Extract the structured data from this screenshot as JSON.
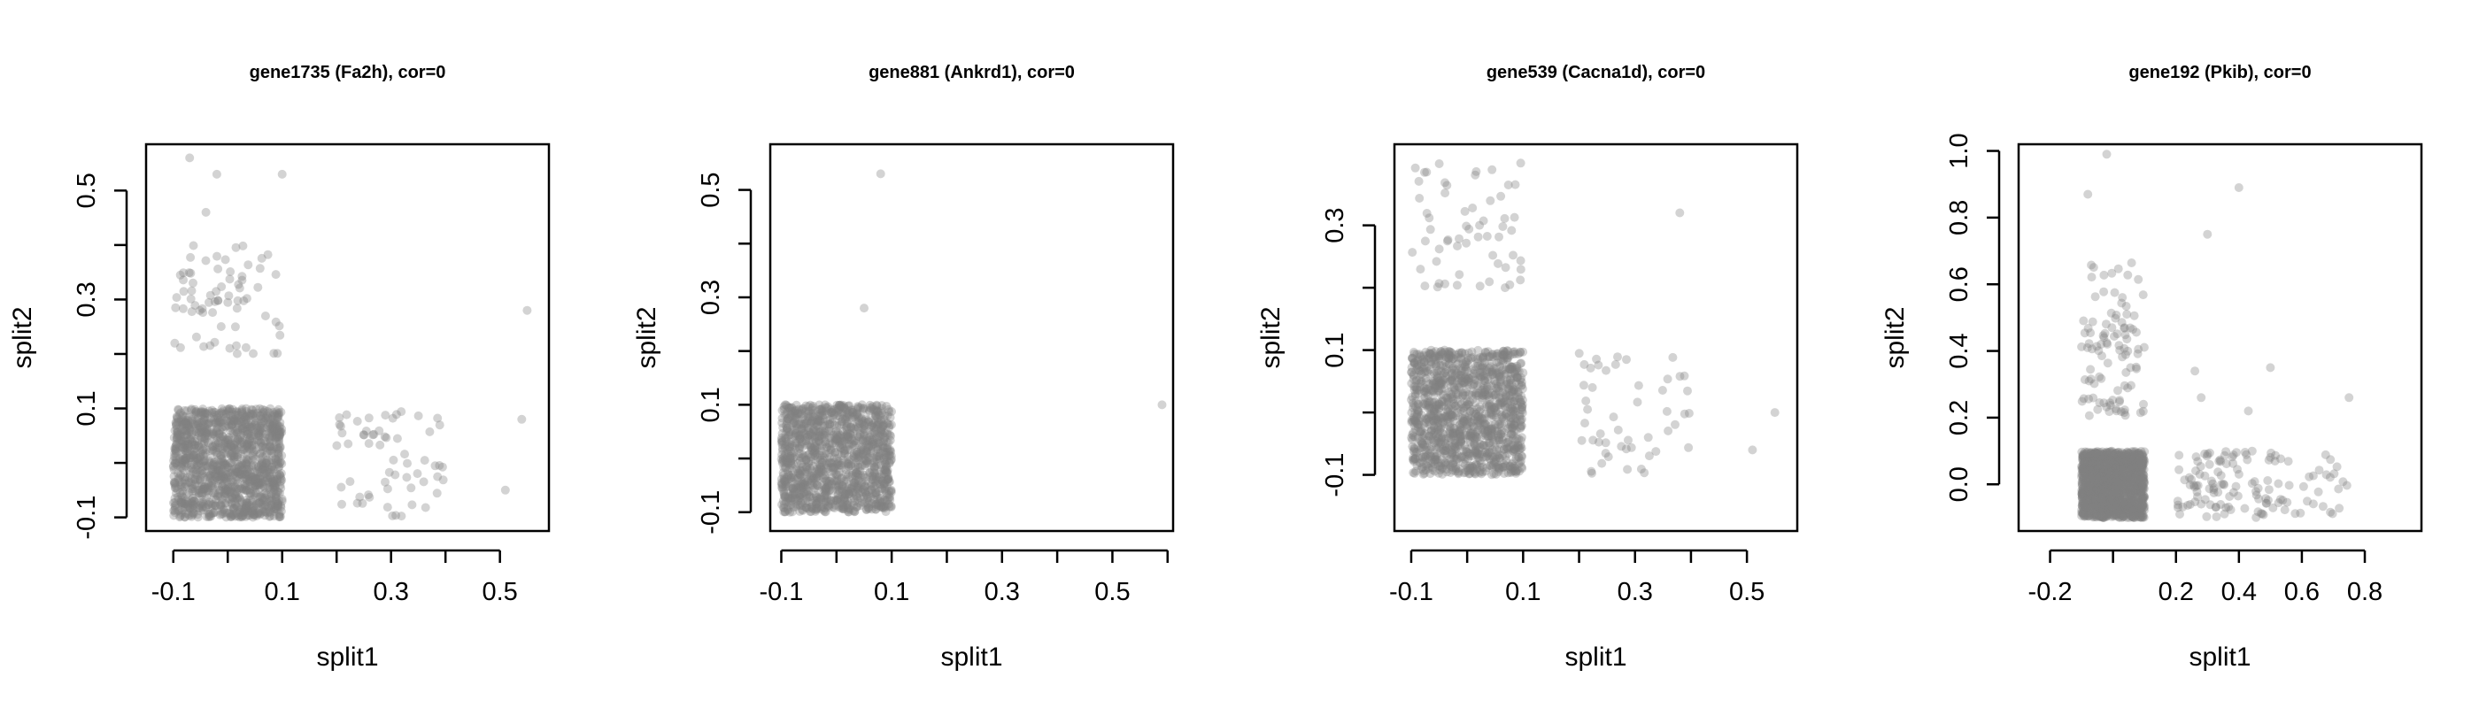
{
  "figure": {
    "background": "#ffffff",
    "point_color": "#808080"
  },
  "chart_data": [
    {
      "type": "scatter",
      "title": "gene1735 (Fa2h), cor=0",
      "xlabel": "split1",
      "ylabel": "split2",
      "xlim": [
        -0.15,
        0.59
      ],
      "ylim": [
        -0.125,
        0.585
      ],
      "xticks": [
        -0.1,
        0.0,
        0.1,
        0.2,
        0.3,
        0.4,
        0.5
      ],
      "xtick_labels": [
        "-0.1",
        "",
        "0.1",
        "",
        "0.3",
        "",
        "0.5"
      ],
      "yticks": [
        -0.1,
        0.0,
        0.1,
        0.2,
        0.3,
        0.4,
        0.5
      ],
      "ytick_labels": [
        "-0.1",
        "",
        "0.1",
        "",
        "0.3",
        "",
        "0.5"
      ],
      "grid": false,
      "clusters": [
        {
          "x": [
            -0.1,
            0.1
          ],
          "y": [
            -0.1,
            0.1
          ],
          "n": 1400,
          "opacity": 0.35
        },
        {
          "x": [
            -0.1,
            0.1
          ],
          "y": [
            0.2,
            0.4
          ],
          "n": 70,
          "opacity": 0.35
        },
        {
          "x": [
            0.2,
            0.4
          ],
          "y": [
            -0.1,
            0.1
          ],
          "n": 60,
          "opacity": 0.35
        }
      ],
      "points": [
        {
          "x": -0.07,
          "y": 0.56
        },
        {
          "x": -0.02,
          "y": 0.53
        },
        {
          "x": 0.1,
          "y": 0.53
        },
        {
          "x": -0.04,
          "y": 0.46
        },
        {
          "x": 0.55,
          "y": 0.28
        },
        {
          "x": 0.54,
          "y": 0.08
        },
        {
          "x": 0.51,
          "y": -0.05
        }
      ]
    },
    {
      "type": "scatter",
      "title": "gene881 (Ankrd1), cor=0",
      "xlabel": "split1",
      "ylabel": "split2",
      "xlim": [
        -0.12,
        0.61
      ],
      "ylim": [
        -0.135,
        0.585
      ],
      "xticks": [
        -0.1,
        0.0,
        0.1,
        0.2,
        0.3,
        0.4,
        0.5,
        0.6
      ],
      "xtick_labels": [
        "-0.1",
        "",
        "0.1",
        "",
        "0.3",
        "",
        "0.5",
        ""
      ],
      "yticks": [
        -0.1,
        0.0,
        0.1,
        0.2,
        0.3,
        0.4,
        0.5
      ],
      "ytick_labels": [
        "-0.1",
        "",
        "0.1",
        "",
        "0.3",
        "",
        "0.5"
      ],
      "grid": false,
      "clusters": [
        {
          "x": [
            -0.1,
            0.1
          ],
          "y": [
            -0.1,
            0.1
          ],
          "n": 1300,
          "opacity": 0.35
        }
      ],
      "points": [
        {
          "x": 0.08,
          "y": 0.53
        },
        {
          "x": 0.05,
          "y": 0.28
        },
        {
          "x": 0.59,
          "y": 0.1
        }
      ]
    },
    {
      "type": "scatter",
      "title": "gene539 (Cacna1d), cor=0",
      "xlabel": "split1",
      "ylabel": "split2",
      "xlim": [
        -0.13,
        0.59
      ],
      "ylim": [
        -0.19,
        0.43
      ],
      "xticks": [
        -0.1,
        0.0,
        0.1,
        0.2,
        0.3,
        0.4,
        0.5
      ],
      "xtick_labels": [
        "-0.1",
        "",
        "0.1",
        "",
        "0.3",
        "",
        "0.5"
      ],
      "yticks": [
        -0.1,
        0.0,
        0.1,
        0.2,
        0.3
      ],
      "ytick_labels": [
        "-0.1",
        "",
        "0.1",
        "",
        "0.3"
      ],
      "grid": false,
      "clusters": [
        {
          "x": [
            -0.1,
            0.1
          ],
          "y": [
            -0.1,
            0.1
          ],
          "n": 1300,
          "opacity": 0.35
        },
        {
          "x": [
            -0.1,
            0.1
          ],
          "y": [
            0.2,
            0.4
          ],
          "n": 60,
          "opacity": 0.35
        },
        {
          "x": [
            0.2,
            0.4
          ],
          "y": [
            -0.1,
            0.1
          ],
          "n": 50,
          "opacity": 0.35
        }
      ],
      "points": [
        {
          "x": 0.38,
          "y": 0.32
        },
        {
          "x": 0.55,
          "y": -0.0
        },
        {
          "x": 0.51,
          "y": -0.06
        }
      ]
    },
    {
      "type": "scatter",
      "title": "gene192 (Pkib), cor=0",
      "xlabel": "split1",
      "ylabel": "split2",
      "xlim": [
        -0.3,
        0.98
      ],
      "ylim": [
        -0.14,
        1.02
      ],
      "xticks": [
        -0.2,
        0.0,
        0.2,
        0.4,
        0.6,
        0.8
      ],
      "xtick_labels": [
        "-0.2",
        "",
        "0.2",
        "0.4",
        "0.6",
        "0.8"
      ],
      "yticks": [
        0.0,
        0.2,
        0.4,
        0.6,
        0.8,
        1.0
      ],
      "ytick_labels": [
        "0.0",
        "0.2",
        "0.4",
        "0.6",
        "0.8",
        "1.0"
      ],
      "grid": false,
      "clusters": [
        {
          "x": [
            -0.1,
            0.1
          ],
          "y": [
            -0.1,
            0.1
          ],
          "n": 1500,
          "opacity": 0.35
        },
        {
          "x": [
            -0.1,
            0.1
          ],
          "y": [
            0.2,
            0.5
          ],
          "n": 80,
          "opacity": 0.35
        },
        {
          "x": [
            -0.1,
            0.1
          ],
          "y": [
            0.5,
            0.7
          ],
          "n": 20,
          "opacity": 0.35
        },
        {
          "x": [
            0.2,
            0.4
          ],
          "y": [
            -0.1,
            0.1
          ],
          "n": 70,
          "opacity": 0.35
        },
        {
          "x": [
            0.4,
            0.6
          ],
          "y": [
            -0.1,
            0.1
          ],
          "n": 40,
          "opacity": 0.35
        },
        {
          "x": [
            0.6,
            0.75
          ],
          "y": [
            -0.1,
            0.1
          ],
          "n": 20,
          "opacity": 0.35
        }
      ],
      "points": [
        {
          "x": -0.02,
          "y": 0.99
        },
        {
          "x": 0.4,
          "y": 0.89
        },
        {
          "x": -0.08,
          "y": 0.87
        },
        {
          "x": 0.3,
          "y": 0.75
        },
        {
          "x": 0.26,
          "y": 0.34
        },
        {
          "x": 0.28,
          "y": 0.26
        },
        {
          "x": 0.5,
          "y": 0.35
        },
        {
          "x": 0.75,
          "y": 0.26
        },
        {
          "x": 0.43,
          "y": 0.22
        }
      ]
    }
  ]
}
